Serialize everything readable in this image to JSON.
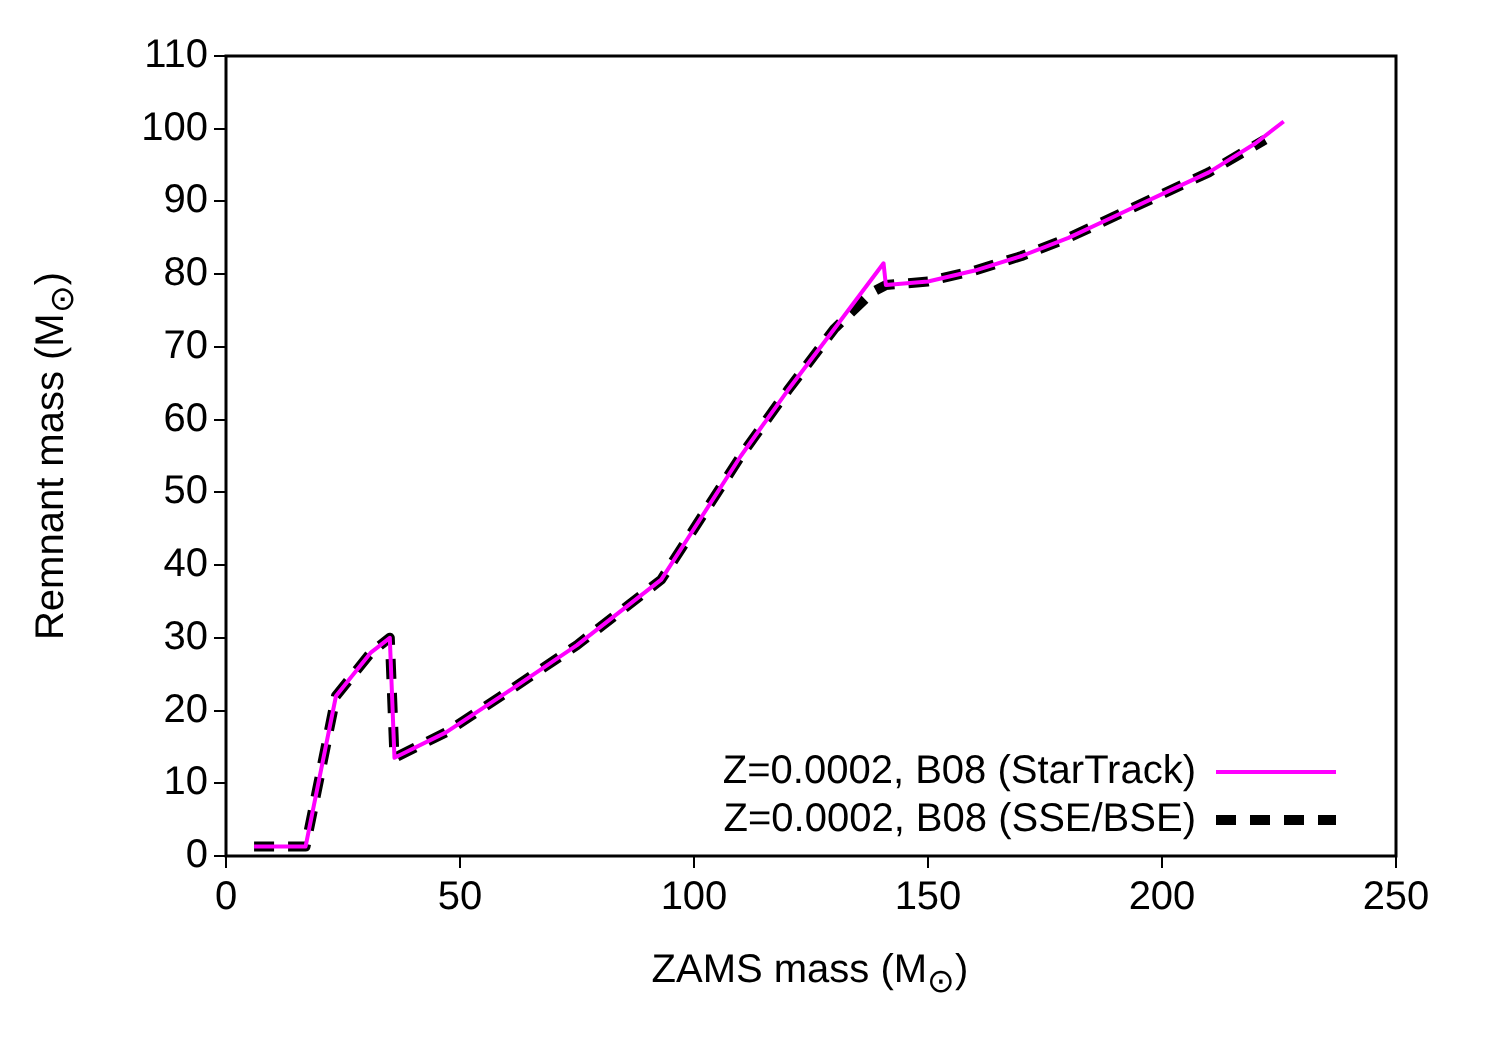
{
  "chart_data": {
    "type": "line",
    "xlabel": "ZAMS mass (M$_{⊙}$)",
    "ylabel": "Remnant mass (M$_{⊙}$)",
    "xlim": [
      0,
      250
    ],
    "xticks": [
      0,
      50,
      100,
      150,
      200,
      250
    ],
    "ylim": [
      0,
      110
    ],
    "yticks": [
      0,
      10,
      20,
      30,
      40,
      50,
      60,
      70,
      80,
      90,
      100,
      110
    ],
    "grid": false,
    "legend": "bottom right",
    "marker": "none",
    "series": [
      {
        "name": "Z=0.0002, B08 (StarTrack)",
        "color": "#ff00ff",
        "line_style": "solid",
        "x": [
          6,
          17,
          23.5,
          31,
          35,
          36,
          47,
          60,
          75,
          93,
          100,
          110,
          120,
          130,
          140.5,
          141,
          150,
          160,
          170,
          180,
          190,
          200,
          210,
          220,
          226
        ],
        "values": [
          1.3,
          1.3,
          22,
          28,
          30,
          13.5,
          17,
          22.5,
          29,
          38,
          45,
          55,
          64,
          72.5,
          81.5,
          78.5,
          79,
          80.5,
          82.5,
          85,
          88,
          91,
          94,
          98,
          101
        ]
      },
      {
        "name": "Z=0.0002, B08 (SSE/BSE)",
        "color": "#000000",
        "line_style": "dashed",
        "x": [
          6,
          17,
          23.5,
          31,
          35,
          36,
          47,
          60,
          75,
          93,
          100,
          110,
          120,
          130,
          138,
          141,
          150,
          160,
          170,
          180,
          190,
          200,
          210,
          222
        ],
        "values": [
          1.3,
          1.3,
          22,
          28,
          30,
          13.5,
          17,
          22.5,
          29,
          38,
          45,
          55,
          64,
          72.5,
          77.5,
          78.5,
          79,
          80.5,
          82.5,
          85,
          88,
          91,
          94,
          98.5
        ]
      }
    ]
  }
}
